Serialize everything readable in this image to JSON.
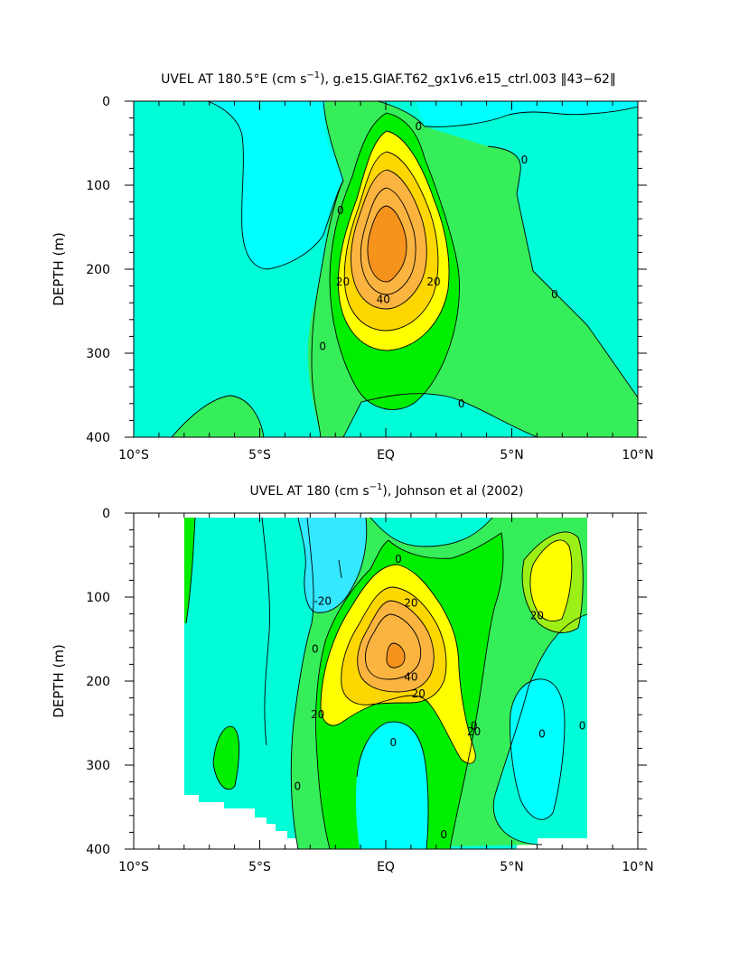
{
  "chart_data": [
    {
      "type": "contour",
      "title": "UVEL AT 180.5°E (cm s^-1), g.e15.GIAF.T62_gx1v6.e15_ctrl.003 ‖43-62‖",
      "title_main": "UVEL AT 180.5°E (cm s",
      "title_sup": "−1",
      "title_tail": "), g.e15.GIAF.T62_gx1v6.e15_ctrl.003 ‖43−62‖",
      "xlabel": "",
      "ylabel": "DEPTH (m)",
      "xlim": [
        -10,
        10
      ],
      "ylim": [
        0,
        400
      ],
      "y_inverted": true,
      "x_ticks": [
        -10,
        -5,
        0,
        5,
        10
      ],
      "x_tick_labels": [
        "10°S",
        "5°S",
        "EQ",
        "5°N",
        "10°N"
      ],
      "y_ticks": [
        0,
        100,
        200,
        300,
        400
      ],
      "y_tick_labels": [
        "0",
        "100",
        "200",
        "300",
        "400"
      ],
      "contour_interval": 10,
      "jet_core": {
        "lat": 0.0,
        "depth": 160,
        "max": 50
      },
      "contour_labels": [
        {
          "text": "0",
          "lat": 1.3,
          "depth": 30
        },
        {
          "text": "0",
          "lat": 5.5,
          "depth": 70
        },
        {
          "text": "0",
          "lat": -1.8,
          "depth": 130
        },
        {
          "text": "0",
          "lat": 6.7,
          "depth": 230
        },
        {
          "text": "0",
          "lat": -2.5,
          "depth": 292
        },
        {
          "text": "0",
          "lat": 3.0,
          "depth": 360
        },
        {
          "text": "20",
          "lat": -1.7,
          "depth": 215
        },
        {
          "text": "20",
          "lat": 1.9,
          "depth": 215
        },
        {
          "text": "40",
          "lat": -0.1,
          "depth": 236
        }
      ]
    },
    {
      "type": "contour",
      "title": "UVEL AT 180 (cm s^-1), Johnson et al (2002)",
      "title_main": "UVEL AT 180 (cm s",
      "title_sup": "−1",
      "title_tail": "), Johnson et al (2002)",
      "xlabel": "",
      "ylabel": "DEPTH (m)",
      "xlim": [
        -10,
        10
      ],
      "ylim": [
        0,
        400
      ],
      "y_inverted": true,
      "x_ticks": [
        -10,
        -5,
        0,
        5,
        10
      ],
      "x_tick_labels": [
        "10°S",
        "5°S",
        "EQ",
        "5°N",
        "10°N"
      ],
      "y_ticks": [
        0,
        100,
        200,
        300,
        400
      ],
      "y_tick_labels": [
        "0",
        "100",
        "200",
        "300",
        "400"
      ],
      "contour_interval": 10,
      "data_extent": {
        "lat": [
          -8,
          8
        ],
        "depth": [
          5,
          385
        ]
      },
      "jet_core": {
        "lat": 0.0,
        "depth": 165,
        "max": 55
      },
      "contour_labels": [
        {
          "text": "0",
          "lat": 0.5,
          "depth": 55
        },
        {
          "text": "-20",
          "lat": -2.5,
          "depth": 105
        },
        {
          "text": "20",
          "lat": 1.0,
          "depth": 107
        },
        {
          "text": "20",
          "lat": 6.0,
          "depth": 122
        },
        {
          "text": "0",
          "lat": -2.8,
          "depth": 162
        },
        {
          "text": "40",
          "lat": 1.0,
          "depth": 195
        },
        {
          "text": "20",
          "lat": 1.3,
          "depth": 215
        },
        {
          "text": "20",
          "lat": -2.7,
          "depth": 240
        },
        {
          "text": "0",
          "lat": 3.5,
          "depth": 253
        },
        {
          "text": "0",
          "lat": 6.2,
          "depth": 263
        },
        {
          "text": "0",
          "lat": 7.8,
          "depth": 253
        },
        {
          "text": "20",
          "lat": 3.5,
          "depth": 260
        },
        {
          "text": "0",
          "lat": 0.3,
          "depth": 273
        },
        {
          "text": "0",
          "lat": -3.5,
          "depth": 325
        },
        {
          "text": "0",
          "lat": 2.3,
          "depth": 383
        }
      ]
    }
  ],
  "colors": {
    "lt_neg20": "#00ffff",
    "neg20_neg10": "#33e8ff",
    "neg10_0": "#00fdd8",
    "c0_10": "#36ee5a",
    "c10_20": "#00ee00",
    "c20_30": "#9cf016",
    "c30_40": "#ffff00",
    "c40_50": "#ffd700",
    "c50_60": "#fbb440",
    "gt60": "#f6931c"
  }
}
